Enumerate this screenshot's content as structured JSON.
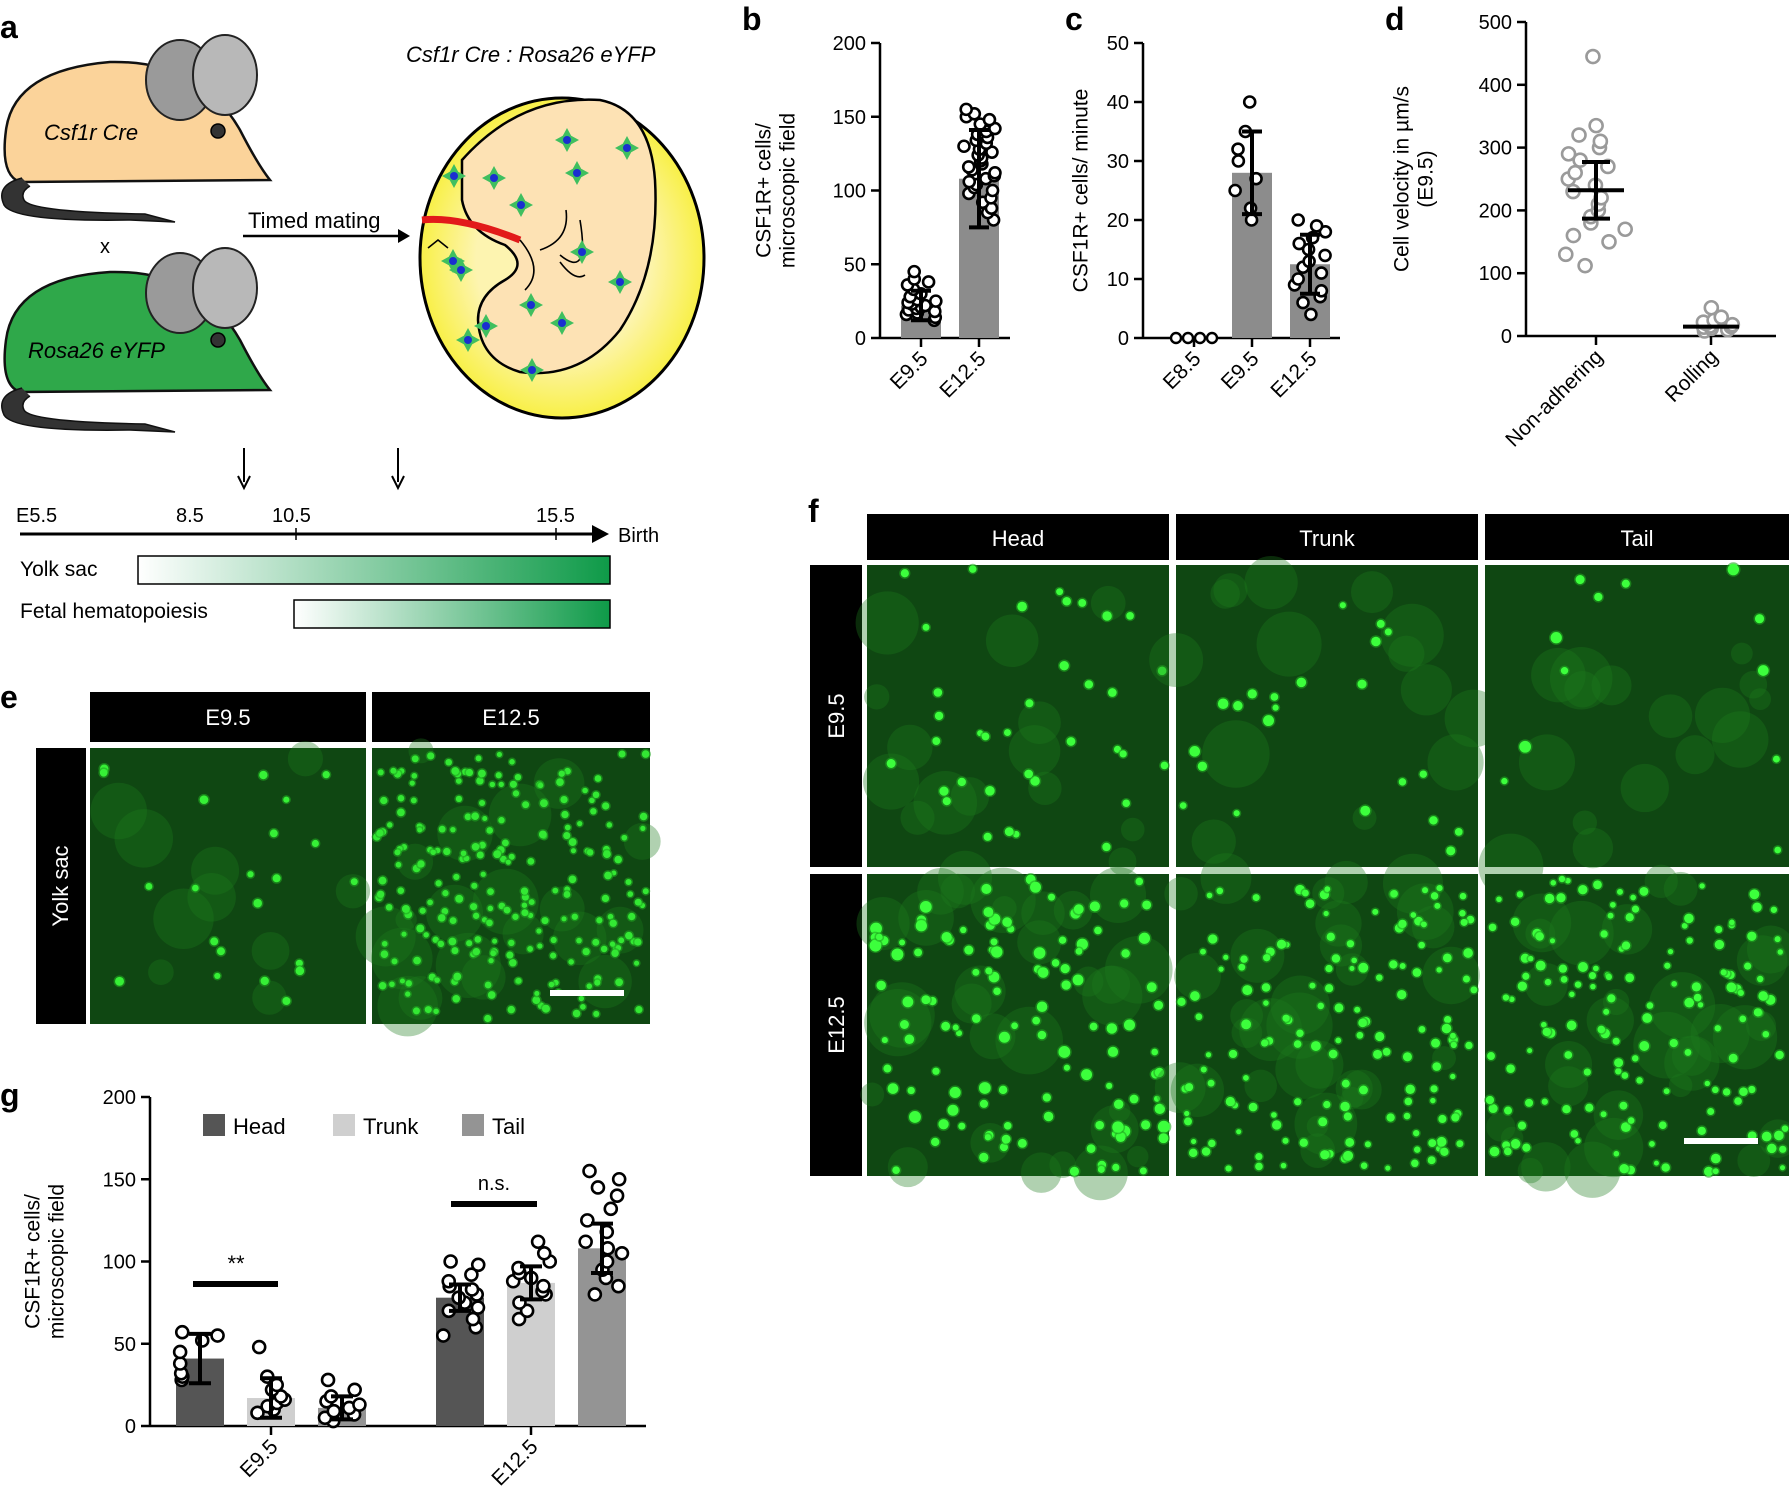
{
  "panels": {
    "a": {
      "letter": "a",
      "mouse_top_label": "Csf1r Cre",
      "cross": "x",
      "mouse_bottom_label": "Rosa26 eYFP",
      "arrow_label": "Timed mating",
      "embryo_title": "Csf1r Cre : Rosa26 eYFP",
      "timeline": {
        "ticks": [
          "E5.5",
          "8.5",
          "10.5",
          "15.5"
        ],
        "end_label": "Birth"
      },
      "bars": [
        {
          "label": "Yolk sac",
          "color": "#0e9a48"
        },
        {
          "label": "Fetal hematopoiesis",
          "color": "#0e9a48"
        }
      ]
    },
    "b": {
      "letter": "b"
    },
    "c": {
      "letter": "c"
    },
    "d": {
      "letter": "d"
    },
    "e": {
      "letter": "e",
      "columns": [
        "E9.5",
        "E12.5"
      ],
      "row": "Yolk sac"
    },
    "f": {
      "letter": "f",
      "columns": [
        "Head",
        "Trunk",
        "Tail"
      ],
      "rows": [
        "E9.5",
        "E12.5"
      ]
    },
    "g": {
      "letter": "g",
      "legend": [
        "Head",
        "Trunk",
        "Tail"
      ],
      "significance": [
        "**",
        "n.s."
      ]
    }
  },
  "colors": {
    "fluor_bg": "#0a3d0a",
    "fluor_cell": "#38ff38",
    "bar_dark": "#555555",
    "bar_mid": "#949494",
    "bar_light": "#cfcfcf",
    "label_bg": "#000000"
  },
  "chart_data": [
    {
      "panel": "b",
      "type": "bar",
      "categories": [
        "E9.5",
        "E12.5"
      ],
      "values": [
        22,
        108
      ],
      "error": [
        10,
        33
      ],
      "points": [
        [
          12,
          14,
          16,
          17,
          18,
          19,
          20,
          21,
          22,
          23,
          24,
          25,
          26,
          28,
          30,
          33,
          36,
          38,
          40,
          45
        ],
        [
          80,
          85,
          88,
          92,
          95,
          98,
          100,
          102,
          104,
          106,
          108,
          110,
          112,
          114,
          116,
          118,
          120,
          122,
          124,
          126,
          128,
          130,
          132,
          134,
          136,
          138,
          140,
          142,
          145,
          148,
          150,
          152,
          155
        ]
      ],
      "ylabel": "CSF1R+ cells/\nmicroscopic field",
      "ylim": [
        0,
        200
      ],
      "yticks": [
        "0",
        "50",
        "100",
        "150",
        "200"
      ]
    },
    {
      "panel": "c",
      "type": "bar",
      "categories": [
        "E8.5",
        "E9.5",
        "E12.5"
      ],
      "values": [
        0,
        28,
        12.5
      ],
      "error": [
        0,
        7,
        5
      ],
      "points": [
        [
          0,
          0,
          0,
          0
        ],
        [
          20,
          22,
          25,
          27,
          30,
          32,
          35,
          40
        ],
        [
          4,
          6,
          7,
          8,
          9,
          10,
          11,
          12,
          13,
          14,
          15,
          16,
          17,
          18,
          19,
          20
        ]
      ],
      "ylabel": "CSF1R+ cells/ minute",
      "ylim": [
        0,
        50
      ],
      "yticks": [
        "0",
        "10",
        "20",
        "30",
        "40",
        "50"
      ]
    },
    {
      "panel": "d",
      "type": "scatter",
      "categories": [
        "Non-adhering",
        "Rolling"
      ],
      "values": [
        232,
        15
      ],
      "error": [
        45,
        8
      ],
      "points": [
        [
          112,
          130,
          150,
          160,
          170,
          180,
          190,
          200,
          210,
          220,
          230,
          240,
          250,
          260,
          270,
          280,
          290,
          300,
          310,
          320,
          335,
          445
        ],
        [
          8,
          10,
          12,
          14,
          15,
          16,
          18,
          20,
          22,
          25,
          30,
          45
        ]
      ],
      "ylabel": "Cell velocity in µm/s\n(E9.5)",
      "ylim": [
        0,
        500
      ],
      "yticks": [
        "0",
        "100",
        "200",
        "300",
        "400",
        "500"
      ]
    },
    {
      "panel": "g",
      "type": "bar",
      "categories": [
        "E9.5",
        "E12.5"
      ],
      "series": [
        {
          "name": "Head",
          "values": [
            41,
            78
          ],
          "error": [
            15,
            8
          ],
          "points": [
            [
              28,
              30,
              32,
              38,
              45,
              52,
              55,
              57
            ],
            [
              55,
              60,
              65,
              70,
              72,
              75,
              78,
              80,
              83,
              85,
              88,
              92,
              98,
              100
            ]
          ]
        },
        {
          "name": "Trunk",
          "values": [
            17,
            87
          ],
          "error": [
            12,
            10
          ],
          "points": [
            [
              8,
              10,
              12,
              14,
              16,
              18,
              22,
              25,
              30,
              48
            ],
            [
              65,
              70,
              75,
              80,
              82,
              85,
              88,
              90,
              93,
              96,
              100,
              105,
              112
            ]
          ]
        },
        {
          "name": "Tail",
          "values": [
            11,
            108
          ],
          "error": [
            7,
            15
          ],
          "points": [
            [
              3,
              5,
              7,
              9,
              11,
              13,
              15,
              18,
              22,
              28
            ],
            [
              80,
              85,
              90,
              95,
              100,
              105,
              108,
              112,
              118,
              125,
              132,
              140,
              145,
              150,
              155
            ]
          ]
        }
      ],
      "ylabel": "CSF1R+ cells/\nmicroscopic field",
      "ylim": [
        0,
        200
      ],
      "yticks": [
        "0",
        "50",
        "100",
        "150",
        "200"
      ]
    }
  ]
}
